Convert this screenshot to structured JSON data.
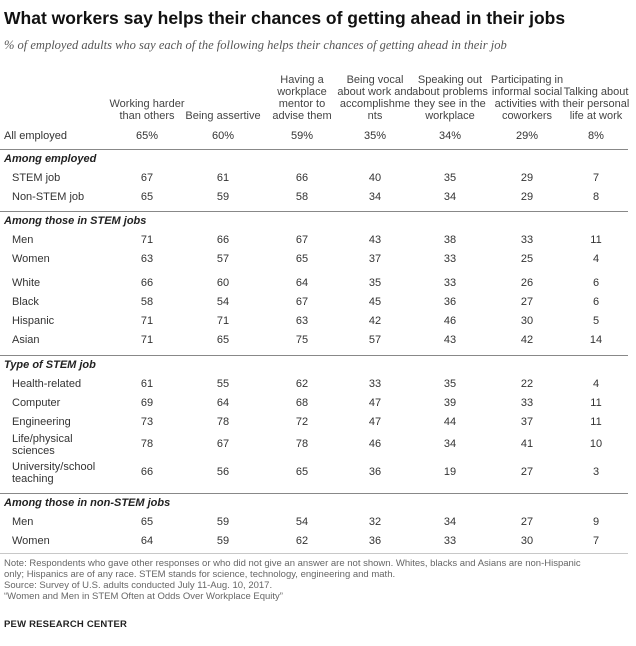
{
  "title": "What workers say helps their chances of getting ahead in their jobs",
  "subtitle": "% of employed adults who say each of the following helps their chances of getting ahead in their job",
  "columns": [
    "Working harder than others",
    "Being assertive",
    "Having a workplace mentor to advise them",
    "Being vocal about work and accomplishme nts",
    "Speaking out about problems they see in the workplace",
    "Participating in informal social activities with coworkers",
    "Talking about their personal life at work"
  ],
  "all_employed": {
    "label": "All employed",
    "values": [
      "65%",
      "60%",
      "59%",
      "35%",
      "34%",
      "29%",
      "8%"
    ]
  },
  "sections": [
    {
      "heading": "Among employed",
      "rows": [
        {
          "label": "STEM job",
          "values": [
            "67",
            "61",
            "66",
            "40",
            "35",
            "29",
            "7"
          ]
        },
        {
          "label": "Non-STEM job",
          "values": [
            "65",
            "59",
            "58",
            "34",
            "34",
            "29",
            "8"
          ]
        }
      ]
    },
    {
      "heading": "Among those in STEM jobs",
      "rows": [
        {
          "label": "Men",
          "values": [
            "71",
            "66",
            "67",
            "43",
            "38",
            "33",
            "11"
          ]
        },
        {
          "label": "Women",
          "values": [
            "63",
            "57",
            "65",
            "37",
            "33",
            "25",
            "4"
          ]
        },
        {
          "label": "White",
          "values": [
            "66",
            "60",
            "64",
            "35",
            "33",
            "26",
            "6"
          ]
        },
        {
          "label": "Black",
          "values": [
            "58",
            "54",
            "67",
            "45",
            "36",
            "27",
            "6"
          ]
        },
        {
          "label": "Hispanic",
          "values": [
            "71",
            "71",
            "63",
            "42",
            "46",
            "30",
            "5"
          ]
        },
        {
          "label": "Asian",
          "values": [
            "71",
            "65",
            "75",
            "57",
            "43",
            "42",
            "14"
          ]
        }
      ]
    },
    {
      "heading": "Type of STEM job",
      "rows": [
        {
          "label": "Health-related",
          "values": [
            "61",
            "55",
            "62",
            "33",
            "35",
            "22",
            "4"
          ]
        },
        {
          "label": "Computer",
          "values": [
            "69",
            "64",
            "68",
            "47",
            "39",
            "33",
            "11"
          ]
        },
        {
          "label": "Engineering",
          "values": [
            "73",
            "78",
            "72",
            "47",
            "44",
            "37",
            "11"
          ]
        },
        {
          "label": "Life/physical sciences",
          "values": [
            "78",
            "67",
            "78",
            "46",
            "34",
            "41",
            "10"
          ]
        },
        {
          "label": "University/school teaching",
          "values": [
            "66",
            "56",
            "65",
            "36",
            "19",
            "27",
            "3"
          ]
        }
      ]
    },
    {
      "heading": "Among those in non-STEM jobs",
      "rows": [
        {
          "label": "Men",
          "values": [
            "65",
            "59",
            "54",
            "32",
            "34",
            "27",
            "9"
          ]
        },
        {
          "label": "Women",
          "values": [
            "64",
            "59",
            "62",
            "36",
            "33",
            "30",
            "7"
          ]
        }
      ]
    }
  ],
  "notes": [
    "Note: Respondents who gave other responses or who did not give an answer are not shown. Whites, blacks and Asians are non-Hispanic",
    "only; Hispanics are of any race. STEM stands for science, technology, engineering and math.",
    "Source: Survey of U.S. adults conducted July 11-Aug. 10, 2017.",
    "“Women and Men in STEM Often at Odds Over Workplace Equity”"
  ],
  "org": "PEW RESEARCH CENTER"
}
